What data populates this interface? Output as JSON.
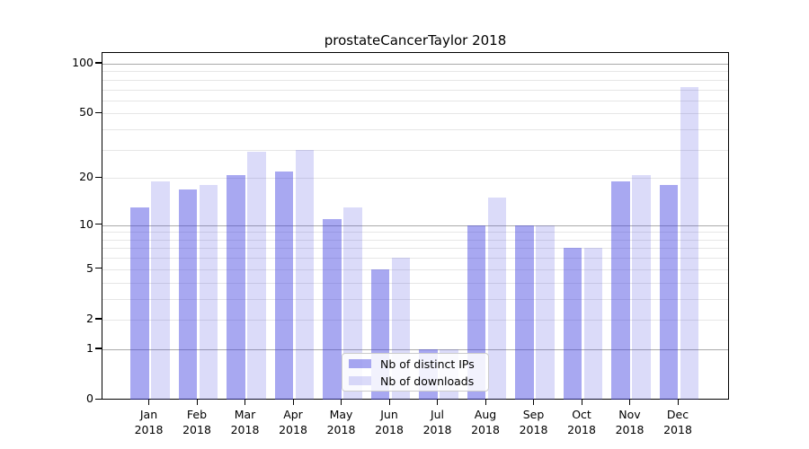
{
  "figure": {
    "title": "prostateCancerTaylor 2018",
    "background": "#ffffff"
  },
  "chart_data": {
    "type": "bar",
    "title": "prostateCancerTaylor 2018",
    "categories": [
      "Jan 2018",
      "Feb 2018",
      "Mar 2018",
      "Apr 2018",
      "May 2018",
      "Jun 2018",
      "Jul 2018",
      "Aug 2018",
      "Sep 2018",
      "Oct 2018",
      "Nov 2018",
      "Dec 2018"
    ],
    "series": [
      {
        "name": "Nb of distinct IPs",
        "color": "rgba(62,62,224,0.45)",
        "values": [
          13,
          17,
          21,
          22,
          11,
          5,
          1,
          10,
          10,
          7,
          19,
          18
        ]
      },
      {
        "name": "Nb of downloads",
        "color": "rgba(62,62,224,0.19)",
        "values": [
          19,
          18,
          29,
          30,
          13,
          6,
          1,
          15,
          10,
          7,
          21,
          72
        ]
      }
    ],
    "yscale": "log1p",
    "ylim": [
      0,
      116
    ],
    "ytick_labels": [
      100,
      50,
      20,
      10,
      5,
      2,
      1,
      0
    ],
    "major_gridlines": [
      1,
      10,
      100
    ],
    "minor_gridlines": [
      2,
      3,
      4,
      5,
      6,
      7,
      8,
      9,
      20,
      30,
      40,
      50,
      60,
      70,
      80,
      90
    ],
    "grid": true,
    "legend_position": "lower-center",
    "xlabel": "",
    "ylabel": "",
    "colors": {
      "major_grid": "#aaaaaa",
      "minor_grid": "#e6e6e6",
      "axis": "#000000",
      "text": "#000000",
      "legend_border": "#cccccc",
      "legend_bg": "rgba(255,255,255,0.85)"
    }
  }
}
